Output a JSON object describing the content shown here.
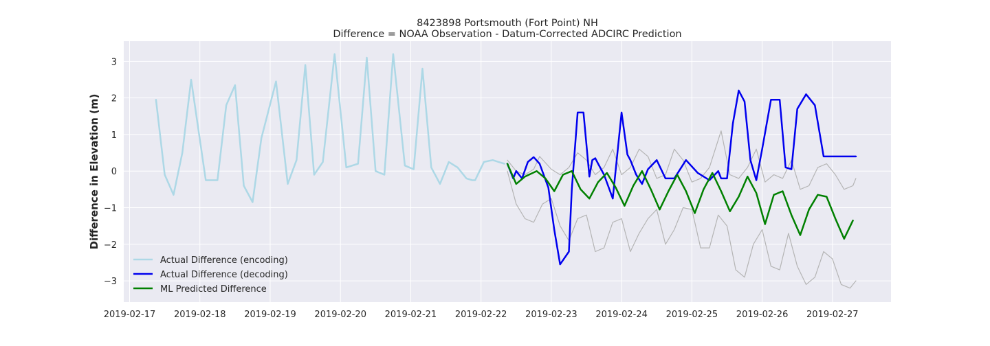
{
  "chart_data": {
    "type": "line",
    "title": "8423898 Portsmouth (Fort Point) NH",
    "subtitle": "Difference = NOAA Observation - Datum-Corrected ADCIRC Prediction",
    "xlabel": "",
    "ylabel": "Difference in Elevation (m)",
    "x_tick_labels": [
      "2019-02-17",
      "2019-02-18",
      "2019-02-19",
      "2019-02-20",
      "2019-02-21",
      "2019-02-22",
      "2019-02-23",
      "2019-02-24",
      "2019-02-25",
      "2019-02-26",
      "2019-02-27"
    ],
    "y_ticks": [
      -3,
      -2,
      -1,
      0,
      1,
      2,
      3
    ],
    "xlim": [
      "2019-02-16 22:00",
      "2019-02-27 20:00"
    ],
    "ylim": [
      -3.58,
      3.55
    ],
    "grid": true,
    "background": "#eaeaf2",
    "legend_position": "lower-left",
    "series": [
      {
        "name": "Actual Difference (encoding)",
        "color": "#add8e6",
        "x": [
          "2019-02-17 09:00",
          "2019-02-17 12:00",
          "2019-02-17 15:00",
          "2019-02-17 18:00",
          "2019-02-17 21:00",
          "2019-02-18 02:00",
          "2019-02-18 06:00",
          "2019-02-18 09:00",
          "2019-02-18 12:00",
          "2019-02-18 15:00",
          "2019-02-18 18:00",
          "2019-02-18 21:00",
          "2019-02-19 02:00",
          "2019-02-19 06:00",
          "2019-02-19 09:00",
          "2019-02-19 12:00",
          "2019-02-19 15:00",
          "2019-02-19 18:00",
          "2019-02-19 22:00",
          "2019-02-20 02:00",
          "2019-02-20 06:00",
          "2019-02-20 09:00",
          "2019-02-20 12:00",
          "2019-02-20 15:00",
          "2019-02-20 18:00",
          "2019-02-20 22:00",
          "2019-02-21 01:00",
          "2019-02-21 04:00",
          "2019-02-21 07:00",
          "2019-02-21 10:00",
          "2019-02-21 13:00",
          "2019-02-21 16:00",
          "2019-02-21 19:00",
          "2019-02-21 21:00",
          "2019-02-21 22:00",
          "2019-02-22 01:00",
          "2019-02-22 04:00",
          "2019-02-22 06:00",
          "2019-02-22 08:00"
        ],
        "y": [
          1.95,
          -0.1,
          -0.65,
          0.5,
          2.5,
          -0.25,
          -0.25,
          1.8,
          2.35,
          -0.4,
          -0.85,
          0.9,
          2.45,
          -0.35,
          0.3,
          2.9,
          -0.1,
          0.25,
          3.2,
          0.1,
          0.2,
          3.1,
          0.0,
          -0.1,
          3.2,
          0.15,
          0.05,
          2.8,
          0.1,
          -0.35,
          0.25,
          0.1,
          -0.2,
          -0.25,
          -0.25,
          0.25,
          0.3,
          0.25,
          0.2
        ]
      },
      {
        "name": "Actual Difference (decoding)",
        "color": "#0000ee",
        "x": [
          "2019-02-22 09:00",
          "2019-02-22 11:00",
          "2019-02-22 12:00",
          "2019-02-22 14:00",
          "2019-02-22 16:00",
          "2019-02-22 18:00",
          "2019-02-22 20:00",
          "2019-02-22 23:00",
          "2019-02-23 01:00",
          "2019-02-23 03:00",
          "2019-02-23 06:00",
          "2019-02-23 07:00",
          "2019-02-23 09:00",
          "2019-02-23 11:00",
          "2019-02-23 13:00",
          "2019-02-23 14:00",
          "2019-02-23 15:00",
          "2019-02-23 16:00",
          "2019-02-23 18:00",
          "2019-02-23 21:00",
          "2019-02-24 00:00",
          "2019-02-24 02:00",
          "2019-02-24 03:00",
          "2019-02-24 05:00",
          "2019-02-24 07:00",
          "2019-02-24 09:00",
          "2019-02-24 12:00",
          "2019-02-24 15:00",
          "2019-02-24 18:00",
          "2019-02-24 22:00",
          "2019-02-25 02:00",
          "2019-02-25 06:00",
          "2019-02-25 09:00",
          "2019-02-25 10:00",
          "2019-02-25 12:00",
          "2019-02-25 14:00",
          "2019-02-25 16:00",
          "2019-02-25 18:00",
          "2019-02-25 20:00",
          "2019-02-25 22:00",
          "2019-02-26 00:00",
          "2019-02-26 03:00",
          "2019-02-26 06:00",
          "2019-02-26 08:00",
          "2019-02-26 10:00",
          "2019-02-26 12:00",
          "2019-02-26 15:00",
          "2019-02-26 18:00",
          "2019-02-26 21:00",
          "2019-02-26 23:00",
          "2019-02-27 01:00",
          "2019-02-27 03:00",
          "2019-02-27 06:00",
          "2019-02-27 08:00"
        ],
        "y": [
          0.2,
          -0.2,
          0.0,
          -0.2,
          0.25,
          0.38,
          0.2,
          -0.45,
          -1.6,
          -2.55,
          -2.2,
          -0.5,
          1.6,
          1.6,
          -0.15,
          0.3,
          0.35,
          0.2,
          -0.1,
          -0.75,
          1.6,
          0.45,
          0.3,
          -0.1,
          -0.35,
          0.05,
          0.3,
          -0.2,
          -0.2,
          0.3,
          -0.05,
          -0.25,
          0.0,
          -0.2,
          -0.2,
          1.3,
          2.2,
          1.9,
          0.3,
          -0.25,
          0.6,
          1.95,
          1.95,
          0.1,
          0.05,
          1.7,
          2.1,
          1.8,
          0.4,
          0.4,
          0.4,
          0.4,
          0.4,
          0.4
        ]
      },
      {
        "name": "ML Predicted Difference",
        "color": "#008000",
        "x": [
          "2019-02-22 09:00",
          "2019-02-22 12:00",
          "2019-02-22 15:00",
          "2019-02-22 19:00",
          "2019-02-22 22:00",
          "2019-02-23 01:00",
          "2019-02-23 04:00",
          "2019-02-23 07:00",
          "2019-02-23 10:00",
          "2019-02-23 13:00",
          "2019-02-23 16:00",
          "2019-02-23 19:00",
          "2019-02-23 22:00",
          "2019-02-24 01:00",
          "2019-02-24 04:00",
          "2019-02-24 07:00",
          "2019-02-24 10:00",
          "2019-02-24 13:00",
          "2019-02-24 16:00",
          "2019-02-24 19:00",
          "2019-02-24 22:00",
          "2019-02-25 01:00",
          "2019-02-25 04:00",
          "2019-02-25 07:00",
          "2019-02-25 10:00",
          "2019-02-25 13:00",
          "2019-02-25 16:00",
          "2019-02-25 19:00",
          "2019-02-25 22:00",
          "2019-02-26 01:00",
          "2019-02-26 04:00",
          "2019-02-26 07:00",
          "2019-02-26 10:00",
          "2019-02-26 13:00",
          "2019-02-26 16:00",
          "2019-02-26 19:00",
          "2019-02-26 22:00",
          "2019-02-27 01:00",
          "2019-02-27 04:00",
          "2019-02-27 07:00"
        ],
        "y": [
          0.2,
          -0.35,
          -0.15,
          0.0,
          -0.2,
          -0.55,
          -0.1,
          0.0,
          -0.5,
          -0.75,
          -0.3,
          -0.05,
          -0.45,
          -0.95,
          -0.4,
          0.0,
          -0.5,
          -1.05,
          -0.55,
          -0.1,
          -0.55,
          -1.15,
          -0.5,
          -0.05,
          -0.55,
          -1.1,
          -0.7,
          -0.15,
          -0.6,
          -1.45,
          -0.65,
          -0.55,
          -1.2,
          -1.75,
          -1.05,
          -0.65,
          -0.7,
          -1.3,
          -1.85,
          -1.35
        ]
      },
      {
        "name": "",
        "color": "#b4b4b4",
        "x": [
          "2019-02-22 09:00",
          "2019-02-22 12:00",
          "2019-02-22 15:00",
          "2019-02-22 18:00",
          "2019-02-22 20:00",
          "2019-02-23 00:00",
          "2019-02-23 03:00",
          "2019-02-23 06:00",
          "2019-02-23 09:00",
          "2019-02-23 12:00",
          "2019-02-23 15:00",
          "2019-02-23 18:00",
          "2019-02-23 21:00",
          "2019-02-24 00:00",
          "2019-02-24 03:00",
          "2019-02-24 06:00",
          "2019-02-24 09:00",
          "2019-02-24 12:00",
          "2019-02-24 15:00",
          "2019-02-24 18:00",
          "2019-02-24 21:00",
          "2019-02-25 00:00",
          "2019-02-25 03:00",
          "2019-02-25 06:00",
          "2019-02-25 10:00",
          "2019-02-25 13:00",
          "2019-02-25 16:00",
          "2019-02-25 19:00",
          "2019-02-25 22:00",
          "2019-02-26 01:00",
          "2019-02-26 04:00",
          "2019-02-26 07:00",
          "2019-02-26 10:00",
          "2019-02-26 13:00",
          "2019-02-26 16:00",
          "2019-02-26 19:00",
          "2019-02-26 22:00",
          "2019-02-27 01:00",
          "2019-02-27 04:00",
          "2019-02-27 07:00",
          "2019-02-27 08:00"
        ],
        "y": [
          0.3,
          0.0,
          -0.1,
          0.05,
          0.4,
          0.05,
          -0.1,
          0.1,
          0.5,
          0.3,
          -0.1,
          0.1,
          0.6,
          -0.1,
          0.1,
          0.6,
          0.4,
          -0.2,
          -0.1,
          0.6,
          0.3,
          -0.3,
          -0.2,
          0.1,
          1.1,
          -0.1,
          -0.2,
          0.1,
          0.6,
          -0.3,
          -0.1,
          -0.2,
          0.3,
          -0.5,
          -0.4,
          0.1,
          0.2,
          -0.1,
          -0.5,
          -0.4,
          -0.2
        ]
      },
      {
        "name": "",
        "color": "#b4b4b4",
        "x": [
          "2019-02-22 09:00",
          "2019-02-22 12:00",
          "2019-02-22 15:00",
          "2019-02-22 18:00",
          "2019-02-22 21:00",
          "2019-02-23 00:00",
          "2019-02-23 03:00",
          "2019-02-23 06:00",
          "2019-02-23 09:00",
          "2019-02-23 12:00",
          "2019-02-23 15:00",
          "2019-02-23 18:00",
          "2019-02-23 21:00",
          "2019-02-24 00:00",
          "2019-02-24 03:00",
          "2019-02-24 06:00",
          "2019-02-24 09:00",
          "2019-02-24 12:00",
          "2019-02-24 15:00",
          "2019-02-24 18:00",
          "2019-02-24 21:00",
          "2019-02-25 00:00",
          "2019-02-25 03:00",
          "2019-02-25 06:00",
          "2019-02-25 09:00",
          "2019-02-25 12:00",
          "2019-02-25 15:00",
          "2019-02-25 18:00",
          "2019-02-25 21:00",
          "2019-02-26 00:00",
          "2019-02-26 03:00",
          "2019-02-26 06:00",
          "2019-02-26 09:00",
          "2019-02-26 12:00",
          "2019-02-26 15:00",
          "2019-02-26 18:00",
          "2019-02-26 21:00",
          "2019-02-27 00:00",
          "2019-02-27 03:00",
          "2019-02-27 06:00",
          "2019-02-27 08:00"
        ],
        "y": [
          0.0,
          -0.9,
          -1.3,
          -1.4,
          -0.9,
          -0.75,
          -1.5,
          -1.9,
          -1.3,
          -1.2,
          -2.2,
          -2.1,
          -1.4,
          -1.3,
          -2.2,
          -1.7,
          -1.3,
          -1.05,
          -2.0,
          -1.6,
          -1.0,
          -1.05,
          -2.1,
          -2.1,
          -1.2,
          -1.5,
          -2.7,
          -2.9,
          -2.0,
          -1.6,
          -2.6,
          -2.7,
          -1.7,
          -2.6,
          -3.1,
          -2.9,
          -2.2,
          -2.4,
          -3.1,
          -3.2,
          -3.0
        ]
      }
    ],
    "legend": [
      {
        "label": "Actual Difference (encoding)",
        "color": "#add8e6"
      },
      {
        "label": "Actual Difference (decoding)",
        "color": "#0000ee"
      },
      {
        "label": "ML Predicted Difference",
        "color": "#008000"
      }
    ]
  }
}
